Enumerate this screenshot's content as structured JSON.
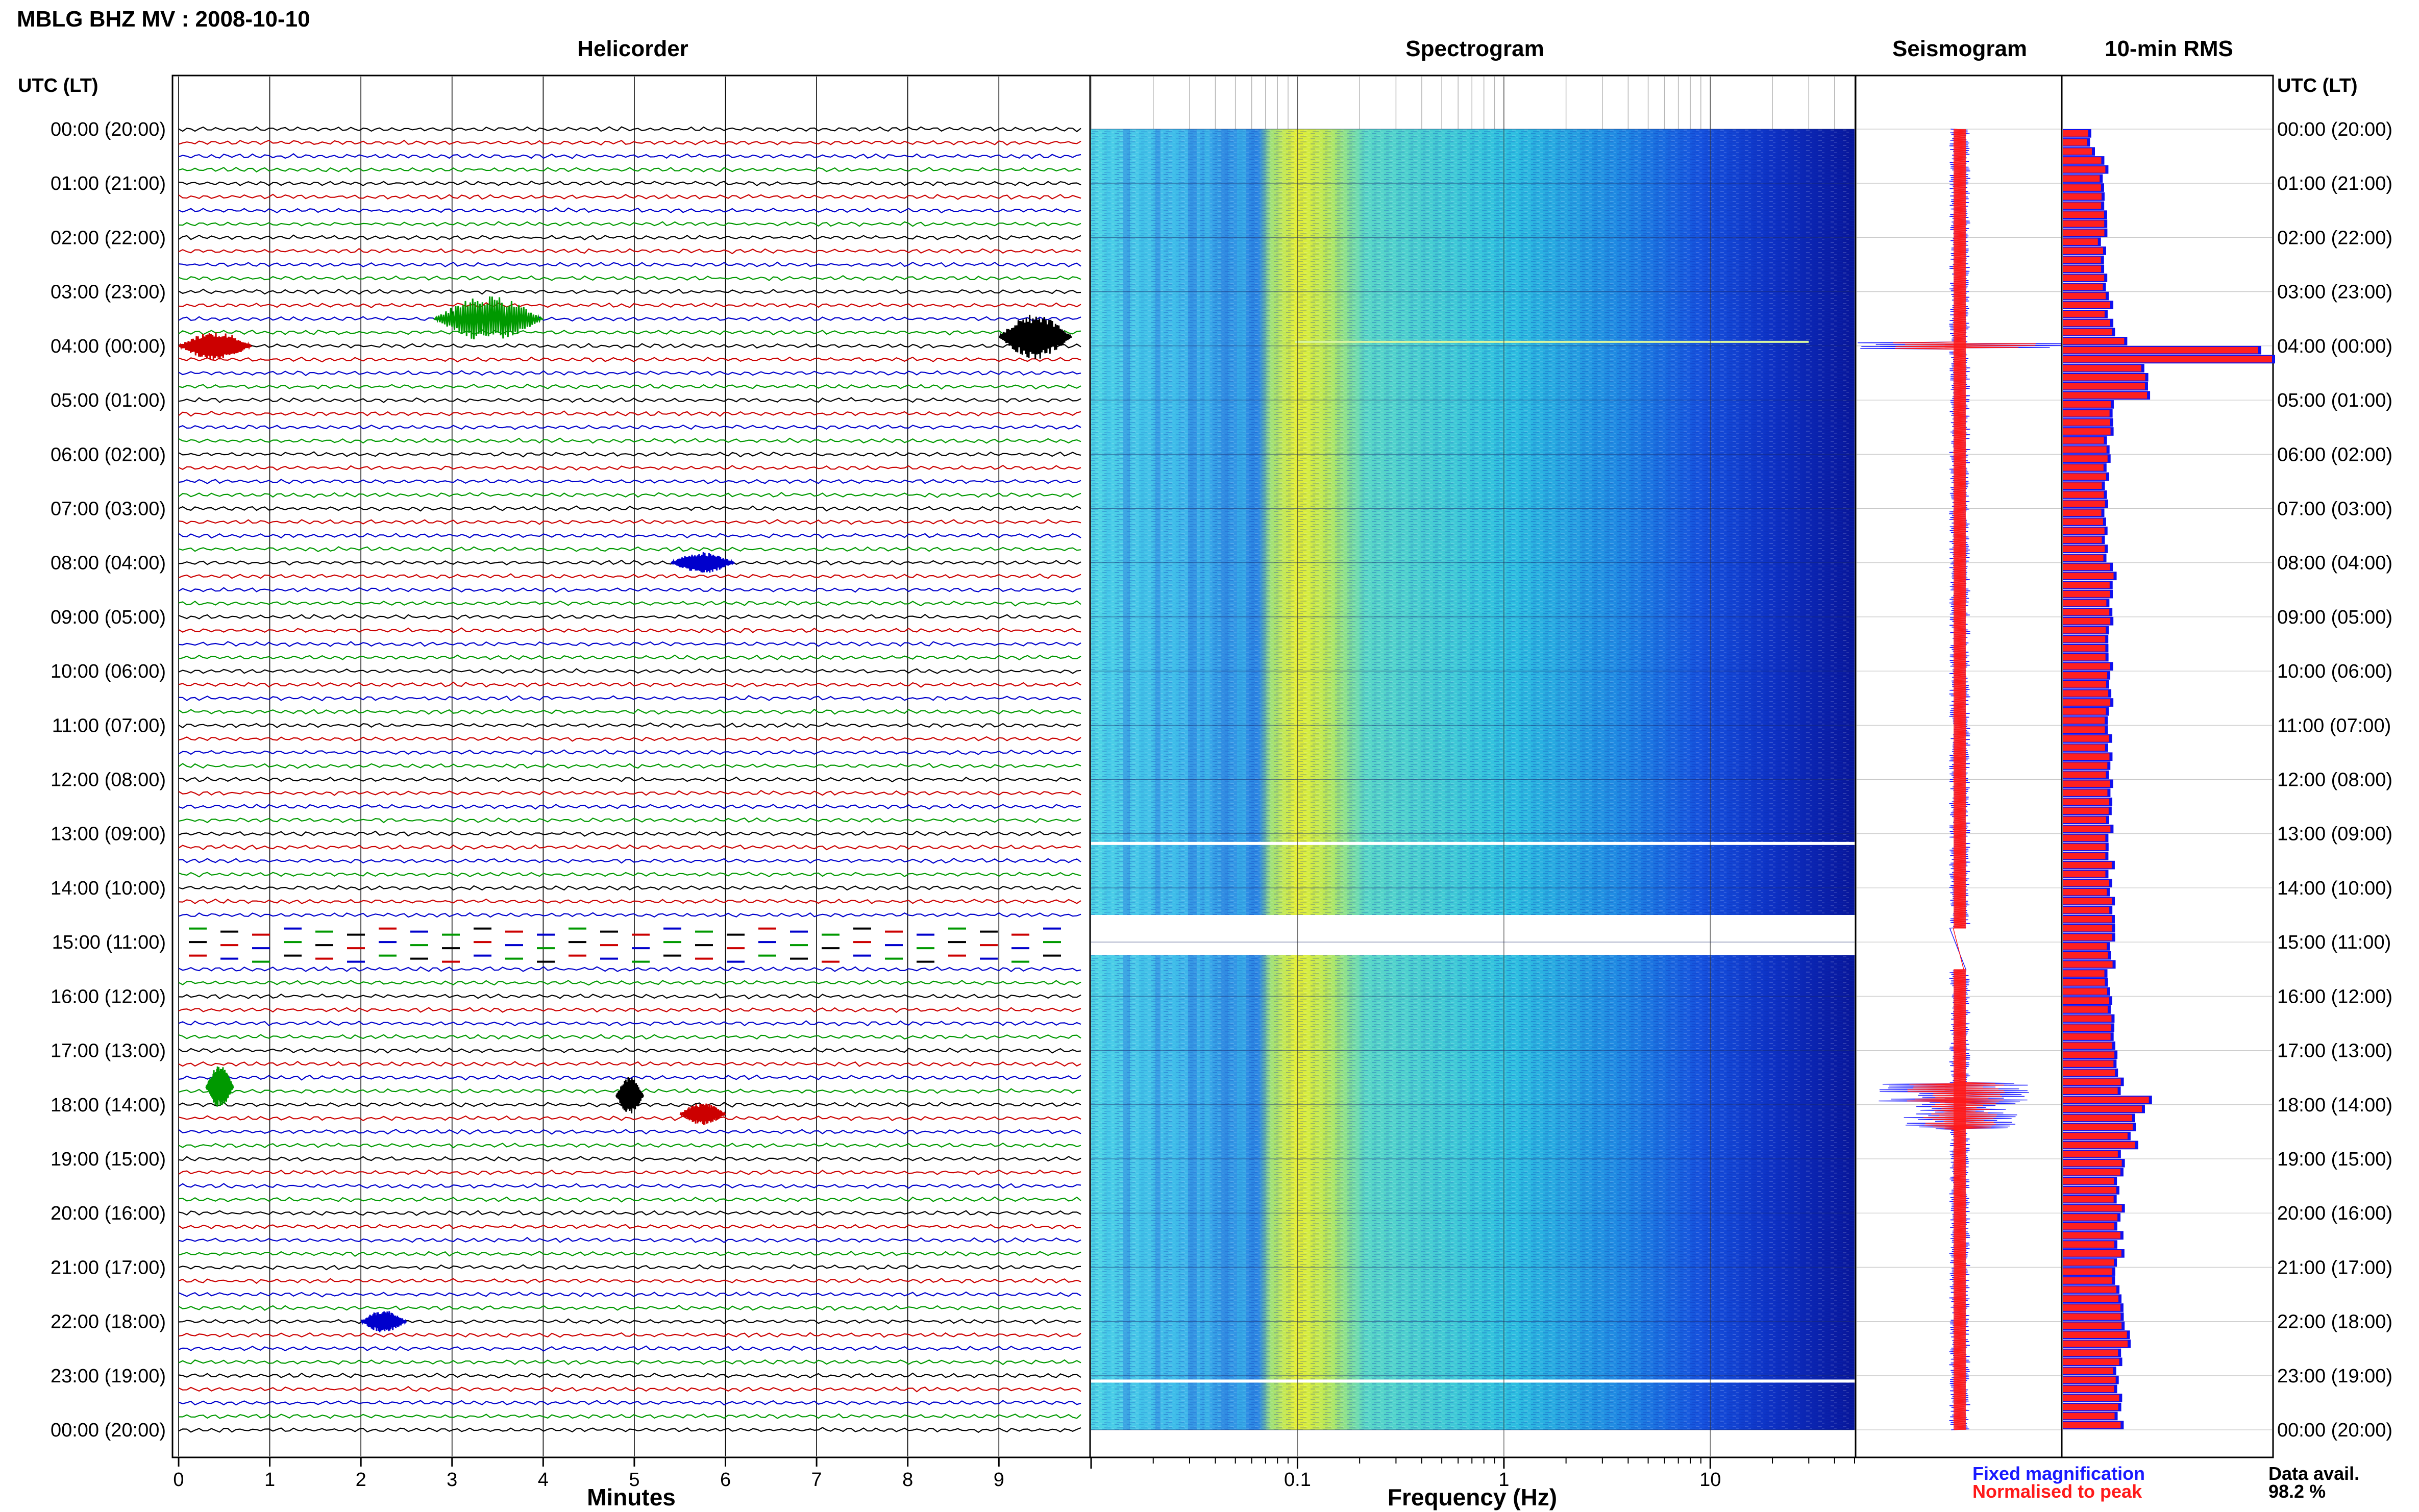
{
  "header": {
    "title": "MBLG BHZ MV : 2008-10-10"
  },
  "panels": {
    "helicorder": "Helicorder",
    "spectrogram": "Spectrogram",
    "seismogram": "Seismogram",
    "rms": "10-min RMS"
  },
  "axes": {
    "left_header": "UTC (LT)",
    "right_header": "UTC (LT)",
    "xlabel_minutes": "Minutes",
    "xlabel_frequency": "Frequency (Hz)"
  },
  "legend": {
    "fixed": "Fixed magnification",
    "normalised": "Normalised to peak",
    "fixed_color": "#1a1aff",
    "normalised_color": "#ff1a1a"
  },
  "availability": {
    "label": "Data avail.",
    "value": "98.2 %"
  },
  "colors": {
    "trace_cycle": [
      "#000000",
      "#cc0000",
      "#0000cc",
      "#009900"
    ],
    "bar_fill": "#ff2020",
    "bar_edge": "#1010ee",
    "spectrogram_low": "#0a1fb5",
    "spectrogram_mid": "#2ecbe0",
    "spectrogram_peak": "#e8f020"
  },
  "chart_data": {
    "type": "heatmap",
    "station": "MBLG BHZ MV",
    "date": "2008-10-10",
    "time_ticks": [
      "00:00 (20:00)",
      "01:00 (21:00)",
      "02:00 (22:00)",
      "03:00 (23:00)",
      "04:00 (00:00)",
      "05:00 (01:00)",
      "06:00 (02:00)",
      "07:00 (03:00)",
      "08:00 (04:00)",
      "09:00 (05:00)",
      "10:00 (06:00)",
      "11:00 (07:00)",
      "12:00 (08:00)",
      "13:00 (09:00)",
      "14:00 (10:00)",
      "15:00 (11:00)",
      "16:00 (12:00)",
      "17:00 (13:00)",
      "18:00 (14:00)",
      "19:00 (15:00)",
      "20:00 (16:00)",
      "21:00 (17:00)",
      "22:00 (18:00)",
      "23:00 (19:00)",
      "00:00 (20:00)"
    ],
    "minute_ticks": [
      "0",
      "1",
      "2",
      "3",
      "4",
      "5",
      "6",
      "7",
      "8",
      "9"
    ],
    "minutes_range": [
      0,
      10
    ],
    "frequency_ticks": [
      {
        "value": 0.1,
        "label": "0.1"
      },
      {
        "value": 1,
        "label": "1"
      },
      {
        "value": 10,
        "label": "10"
      }
    ],
    "frequency_range_hz": [
      0.01,
      50
    ],
    "frequency_scale": "log",
    "spectrogram_peak_hz": 0.2,
    "data_gaps_utc_hours": [
      [
        14.75,
        15.5
      ]
    ],
    "helicorder_events": [
      {
        "time_utc_hours": 3.5,
        "minute_start": 2.8,
        "minute_end": 4.0,
        "amplitude": 3.2
      },
      {
        "time_utc_hours": 3.83,
        "minute_start": 9.0,
        "minute_end": 9.8,
        "amplitude": 3.2
      },
      {
        "time_utc_hours": 4.0,
        "minute_start": 0.0,
        "minute_end": 0.8,
        "amplitude": 2.0
      },
      {
        "time_utc_hours": 8.0,
        "minute_start": 5.4,
        "minute_end": 6.1,
        "amplitude": 1.5
      },
      {
        "time_utc_hours": 17.67,
        "minute_start": 0.3,
        "minute_end": 0.6,
        "amplitude": 3.0
      },
      {
        "time_utc_hours": 17.83,
        "minute_start": 4.8,
        "minute_end": 5.1,
        "amplitude": 2.6
      },
      {
        "time_utc_hours": 18.17,
        "minute_start": 5.5,
        "minute_end": 6.0,
        "amplitude": 1.6
      },
      {
        "time_utc_hours": 22.0,
        "minute_start": 2.0,
        "minute_end": 2.5,
        "amplitude": 1.6
      }
    ],
    "rms_10min": [
      {
        "t": 0.0,
        "v": 0.5
      },
      {
        "t": 0.25,
        "v": 0.6
      },
      {
        "t": 0.5,
        "v": 0.8
      },
      {
        "t": 0.75,
        "v": 0.75
      },
      {
        "t": 1.0,
        "v": 0.7
      },
      {
        "t": 1.5,
        "v": 0.75
      },
      {
        "t": 2.0,
        "v": 0.72
      },
      {
        "t": 2.5,
        "v": 0.78
      },
      {
        "t": 3.0,
        "v": 0.85
      },
      {
        "t": 3.5,
        "v": 0.95
      },
      {
        "t": 3.75,
        "v": 1.1
      },
      {
        "t": 4.0,
        "v": 4.0
      },
      {
        "t": 4.17,
        "v": 2.2
      },
      {
        "t": 4.33,
        "v": 1.5
      },
      {
        "t": 5.0,
        "v": 0.85
      },
      {
        "t": 6.0,
        "v": 0.8
      },
      {
        "t": 7.0,
        "v": 0.75
      },
      {
        "t": 8.0,
        "v": 0.9
      },
      {
        "t": 9.0,
        "v": 0.85
      },
      {
        "t": 10.0,
        "v": 0.85
      },
      {
        "t": 11.0,
        "v": 0.85
      },
      {
        "t": 12.0,
        "v": 0.9
      },
      {
        "t": 13.0,
        "v": 0.88
      },
      {
        "t": 14.0,
        "v": 0.88
      },
      {
        "t": 14.67,
        "v": 0.9
      },
      {
        "t": 15.5,
        "v": 0.85
      },
      {
        "t": 16.0,
        "v": 0.9
      },
      {
        "t": 17.0,
        "v": 0.95
      },
      {
        "t": 17.5,
        "v": 1.1
      },
      {
        "t": 17.67,
        "v": 1.4
      },
      {
        "t": 17.83,
        "v": 1.6
      },
      {
        "t": 18.0,
        "v": 1.4
      },
      {
        "t": 18.33,
        "v": 1.3
      },
      {
        "t": 18.67,
        "v": 1.1
      },
      {
        "t": 19.0,
        "v": 1.05
      },
      {
        "t": 20.0,
        "v": 1.05
      },
      {
        "t": 21.0,
        "v": 1.0
      },
      {
        "t": 21.5,
        "v": 1.05
      },
      {
        "t": 22.0,
        "v": 1.15
      },
      {
        "t": 22.5,
        "v": 1.0
      },
      {
        "t": 23.0,
        "v": 1.05
      },
      {
        "t": 23.5,
        "v": 1.0
      },
      {
        "t": 23.83,
        "v": 1.1
      }
    ]
  }
}
